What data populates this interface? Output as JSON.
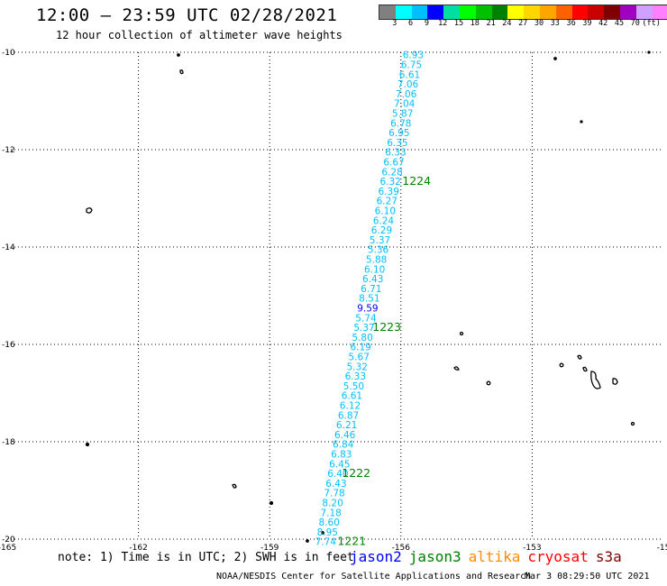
{
  "header": {
    "title": "12:00 – 23:59 UTC 02/28/2021",
    "subtitle": "12 hour collection of altimeter wave heights"
  },
  "colorbar": {
    "colors": [
      "#808080",
      "#00ffff",
      "#00bfff",
      "#0000ff",
      "#00dfa0",
      "#00ff00",
      "#00c000",
      "#008000",
      "#ffff00",
      "#ffd700",
      "#ffa500",
      "#ff6000",
      "#ff0000",
      "#c80000",
      "#800000",
      "#a000c0",
      "#d0a0ff",
      "#ff80ff",
      "#000000"
    ],
    "labels": [
      "3",
      "6",
      "9",
      "12",
      "15",
      "18",
      "21",
      "24",
      "27",
      "30",
      "33",
      "36",
      "39",
      "42",
      "45",
      "70",
      "(ft)"
    ]
  },
  "map": {
    "lon_ticks": [
      "-165",
      "-162",
      "-159",
      "-156",
      "-153",
      "-15"
    ],
    "lat_ticks": [
      "-10",
      "-12",
      "-14",
      "-16",
      "-18",
      "-20"
    ],
    "track_color": "#00bfff",
    "hour_label_color": "#008000",
    "swh_labels": [
      {
        "lat": -10.05,
        "lon": -155.72,
        "v": "6.93"
      },
      {
        "lat": -10.25,
        "lon": -155.76,
        "v": "6.75"
      },
      {
        "lat": -10.45,
        "lon": -155.8,
        "v": "6.61"
      },
      {
        "lat": -10.65,
        "lon": -155.84,
        "v": "7.06"
      },
      {
        "lat": -10.85,
        "lon": -155.88,
        "v": "7.06"
      },
      {
        "lat": -11.05,
        "lon": -155.92,
        "v": "7.04"
      },
      {
        "lat": -11.25,
        "lon": -155.96,
        "v": "5.87"
      },
      {
        "lat": -11.45,
        "lon": -156.0,
        "v": "6.78"
      },
      {
        "lat": -11.65,
        "lon": -156.04,
        "v": "6.95"
      },
      {
        "lat": -11.85,
        "lon": -156.08,
        "v": "6.35"
      },
      {
        "lat": -12.05,
        "lon": -156.12,
        "v": "6.33"
      },
      {
        "lat": -12.25,
        "lon": -156.16,
        "v": "6.67"
      },
      {
        "lat": -12.45,
        "lon": -156.2,
        "v": "6.28"
      },
      {
        "lat": -12.65,
        "lon": -156.24,
        "v": "6.32"
      },
      {
        "lat": -12.85,
        "lon": -156.28,
        "v": "6.39"
      },
      {
        "lat": -13.05,
        "lon": -156.32,
        "v": "6.27"
      },
      {
        "lat": -13.25,
        "lon": -156.36,
        "v": "6.10"
      },
      {
        "lat": -13.45,
        "lon": -156.4,
        "v": "6.24"
      },
      {
        "lat": -13.65,
        "lon": -156.44,
        "v": "6.29"
      },
      {
        "lat": -13.85,
        "lon": -156.48,
        "v": "5.37"
      },
      {
        "lat": -14.05,
        "lon": -156.52,
        "v": "5.36"
      },
      {
        "lat": -14.25,
        "lon": -156.56,
        "v": "5.88"
      },
      {
        "lat": -14.45,
        "lon": -156.6,
        "v": "6.10"
      },
      {
        "lat": -14.65,
        "lon": -156.64,
        "v": "6.43"
      },
      {
        "lat": -14.85,
        "lon": -156.68,
        "v": "6.71"
      },
      {
        "lat": -15.05,
        "lon": -156.72,
        "v": "8.51"
      },
      {
        "lat": -15.25,
        "lon": -156.76,
        "v": "9.59",
        "c": "#0000ff"
      },
      {
        "lat": -15.45,
        "lon": -156.8,
        "v": "5.74"
      },
      {
        "lat": -15.65,
        "lon": -156.84,
        "v": "5.37"
      },
      {
        "lat": -15.85,
        "lon": -156.88,
        "v": "5.80"
      },
      {
        "lat": -16.05,
        "lon": -156.92,
        "v": "6.19"
      },
      {
        "lat": -16.25,
        "lon": -156.96,
        "v": "5.67"
      },
      {
        "lat": -16.45,
        "lon": -157.0,
        "v": "5.32"
      },
      {
        "lat": -16.65,
        "lon": -157.04,
        "v": "6.33"
      },
      {
        "lat": -16.85,
        "lon": -157.08,
        "v": "5.50"
      },
      {
        "lat": -17.05,
        "lon": -157.12,
        "v": "6.61"
      },
      {
        "lat": -17.25,
        "lon": -157.16,
        "v": "6.12"
      },
      {
        "lat": -17.45,
        "lon": -157.2,
        "v": "6.87"
      },
      {
        "lat": -17.65,
        "lon": -157.24,
        "v": "6.21"
      },
      {
        "lat": -17.85,
        "lon": -157.28,
        "v": "6.46"
      },
      {
        "lat": -18.05,
        "lon": -157.32,
        "v": "6.84"
      },
      {
        "lat": -18.25,
        "lon": -157.36,
        "v": "6.83"
      },
      {
        "lat": -18.45,
        "lon": -157.4,
        "v": "6.45"
      },
      {
        "lat": -18.65,
        "lon": -157.44,
        "v": "6.40"
      },
      {
        "lat": -18.85,
        "lon": -157.48,
        "v": "6.43"
      },
      {
        "lat": -19.05,
        "lon": -157.52,
        "v": "7.78"
      },
      {
        "lat": -19.25,
        "lon": -157.56,
        "v": "8.20"
      },
      {
        "lat": -19.45,
        "lon": -157.6,
        "v": "7.18"
      },
      {
        "lat": -19.65,
        "lon": -157.64,
        "v": "8.60"
      },
      {
        "lat": -19.85,
        "lon": -157.68,
        "v": "8.95"
      },
      {
        "lat": -20.05,
        "lon": -157.72,
        "v": "7.74"
      }
    ],
    "hour_labels": [
      {
        "lat": -12.65,
        "lon": -155.97,
        "v": "1224"
      },
      {
        "lat": -15.65,
        "lon": -156.65,
        "v": "1223"
      },
      {
        "lat": -18.65,
        "lon": -157.35,
        "v": "1222"
      },
      {
        "lat": -20.05,
        "lon": -157.45,
        "v": "1221"
      }
    ]
  },
  "note": "note: 1) Time is in UTC; 2) SWH is in feet",
  "legend": [
    {
      "name": "jason2",
      "color": "#0000ff"
    },
    {
      "name": "jason3",
      "color": "#008000"
    },
    {
      "name": "altika",
      "color": "#ff8c00"
    },
    {
      "name": "cryosat",
      "color": "#ff0000"
    },
    {
      "name": "s3a",
      "color": "#800000"
    }
  ],
  "footer": {
    "left": "NOAA/NESDIS Center for Satellite Applications and Research",
    "right": "Mar  3 08:29:50 UTC 2021"
  }
}
